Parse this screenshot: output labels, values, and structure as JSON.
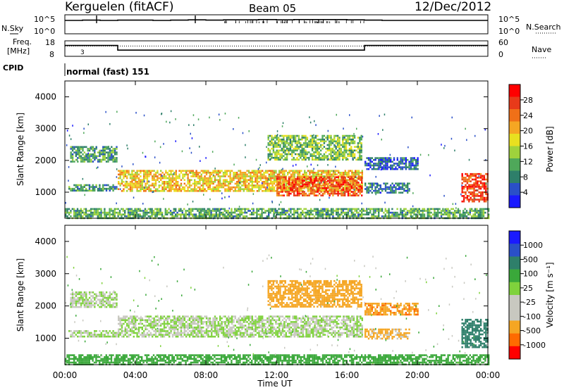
{
  "header": {
    "station": "Kerguelen (fitACF)",
    "beam": "Beam 05",
    "date": "12/Dec/2012"
  },
  "top_panels": {
    "nsky": {
      "label": "N.Sky",
      "ticks": [
        "10^5",
        "10^0"
      ]
    },
    "nsearch": {
      "label": "N.Search",
      "ticks": [
        "10^5",
        "10^0"
      ]
    },
    "freq": {
      "label_line1": "Freq.",
      "label_line2": "[MHz]",
      "ticks": [
        "18",
        "8"
      ],
      "annotation": "3"
    },
    "nave": {
      "label": "Nave",
      "ticks": [
        "60",
        "0"
      ]
    },
    "cpid": {
      "label": "CPID",
      "value": "normal (fast) 151"
    }
  },
  "axes": {
    "ylabel": "Slant Range [km]",
    "yticks": [
      "4000",
      "3000",
      "2000",
      "1000"
    ],
    "xlabel": "Time UT",
    "xticks": [
      "00:00",
      "04:00",
      "08:00",
      "12:00",
      "16:00",
      "20:00",
      "00:00"
    ]
  },
  "colorbars": {
    "power": {
      "label": "Power [dB]",
      "ticks": [
        "28",
        "24",
        "20",
        "16",
        "12",
        "8",
        "4"
      ]
    },
    "velocity": {
      "label": "Velocity [m s⁻¹]",
      "ticks": [
        "1000",
        "500",
        "100",
        "25",
        "-25",
        "-100",
        "-500",
        "-1000"
      ]
    }
  },
  "colors": {
    "power_scale": [
      "#1a1aff",
      "#2a50c8",
      "#2e7f6a",
      "#4fa85a",
      "#9fd23c",
      "#e8e020",
      "#f5a623",
      "#f07018",
      "#e83a1a",
      "#ff0000"
    ],
    "velocity_scale": [
      "#ff0000",
      "#ff6a00",
      "#f5a623",
      "#c8c8c0",
      "#c8c8c0",
      "#7fd23c",
      "#3aa83a",
      "#2e7f6a",
      "#2a50c8",
      "#1a1aff"
    ]
  },
  "chart_data": [
    {
      "type": "line",
      "title": "N.Sky / N.Search",
      "x_range": [
        "00:00",
        "24:00"
      ],
      "series": [
        {
          "name": "N.Sky",
          "values": [
            4.0,
            4.1,
            4.0,
            4.1,
            4.1,
            4.0,
            4.1,
            4.2,
            4.1,
            4.2,
            4.2,
            4.3,
            4.2,
            4.3,
            4.3,
            4.3,
            4.2,
            4.1,
            4.0,
            4.0,
            4.0,
            4.0,
            4.0,
            4.0
          ]
        }
      ],
      "ylim": [
        "10^0",
        "10^5"
      ]
    },
    {
      "type": "line",
      "title": "Freq. / Nave",
      "x_hours": [
        0,
        3,
        3,
        17,
        17,
        24
      ],
      "series": [
        {
          "name": "Freq. [MHz]",
          "values": [
            15,
            15,
            12,
            12,
            15,
            15
          ]
        },
        {
          "name": "Nave",
          "values": [
            40,
            40,
            40,
            40,
            40,
            40
          ]
        }
      ],
      "ylim_freq": [
        8,
        18
      ],
      "ylim_nave": [
        0,
        60
      ]
    },
    {
      "type": "heatmap",
      "title": "Power [dB]",
      "xlabel": "Time UT",
      "ylabel": "Slant Range [km]",
      "xlim_hours": [
        0,
        24
      ],
      "ylim_km": [
        180,
        4500
      ],
      "zlim": [
        0,
        32
      ],
      "colorbar_ticks": [
        4,
        8,
        12,
        16,
        20,
        24,
        28
      ],
      "echo_bands": [
        {
          "t0": 0.3,
          "t1": 2.9,
          "r0": 1950,
          "r1": 2450,
          "power": 10
        },
        {
          "t0": 0.2,
          "t1": 2.9,
          "r0": 1050,
          "r1": 1250,
          "power": 9
        },
        {
          "t0": 3.0,
          "t1": 16.9,
          "r0": 1050,
          "r1": 1700,
          "power": 19
        },
        {
          "t0": 12.0,
          "t1": 16.8,
          "r0": 900,
          "r1": 1500,
          "power": 26
        },
        {
          "t0": 11.5,
          "t1": 16.8,
          "r0": 2000,
          "r1": 2800,
          "power": 13
        },
        {
          "t0": 17.0,
          "t1": 20.0,
          "r0": 1750,
          "r1": 2100,
          "power": 6
        },
        {
          "t0": 17.0,
          "t1": 19.5,
          "r0": 1000,
          "r1": 1300,
          "power": 8
        },
        {
          "t0": 22.5,
          "t1": 24.0,
          "r0": 700,
          "r1": 1600,
          "power": 27
        },
        {
          "t0": 0.0,
          "t1": 24.0,
          "r0": 200,
          "r1": 500,
          "power": 11
        }
      ]
    },
    {
      "type": "heatmap",
      "title": "Velocity [m s⁻¹]",
      "xlabel": "Time UT",
      "ylabel": "Slant Range [km]",
      "xlim_hours": [
        0,
        24
      ],
      "ylim_km": [
        180,
        4500
      ],
      "zlim": [
        -1000,
        1000
      ],
      "colorbar_ticks": [
        1000,
        500,
        100,
        25,
        -25,
        -100,
        -500,
        -1000
      ],
      "echo_bands": [
        {
          "t0": 0.3,
          "t1": 2.9,
          "r0": 1950,
          "r1": 2450,
          "velocity": 0
        },
        {
          "t0": 0.2,
          "t1": 2.9,
          "r0": 1050,
          "r1": 1250,
          "velocity": 0
        },
        {
          "t0": 3.0,
          "t1": 16.9,
          "r0": 1050,
          "r1": 1700,
          "velocity": 0
        },
        {
          "t0": 11.5,
          "t1": 16.8,
          "r0": 2000,
          "r1": 2800,
          "velocity": -300
        },
        {
          "t0": 17.0,
          "t1": 20.0,
          "r0": 1750,
          "r1": 2100,
          "velocity": -400
        },
        {
          "t0": 17.0,
          "t1": 19.5,
          "r0": 1000,
          "r1": 1300,
          "velocity": -200
        },
        {
          "t0": 22.5,
          "t1": 24.0,
          "r0": 700,
          "r1": 1600,
          "velocity": 300
        },
        {
          "t0": 0.0,
          "t1": 24.0,
          "r0": 200,
          "r1": 500,
          "velocity": 50
        }
      ]
    }
  ]
}
